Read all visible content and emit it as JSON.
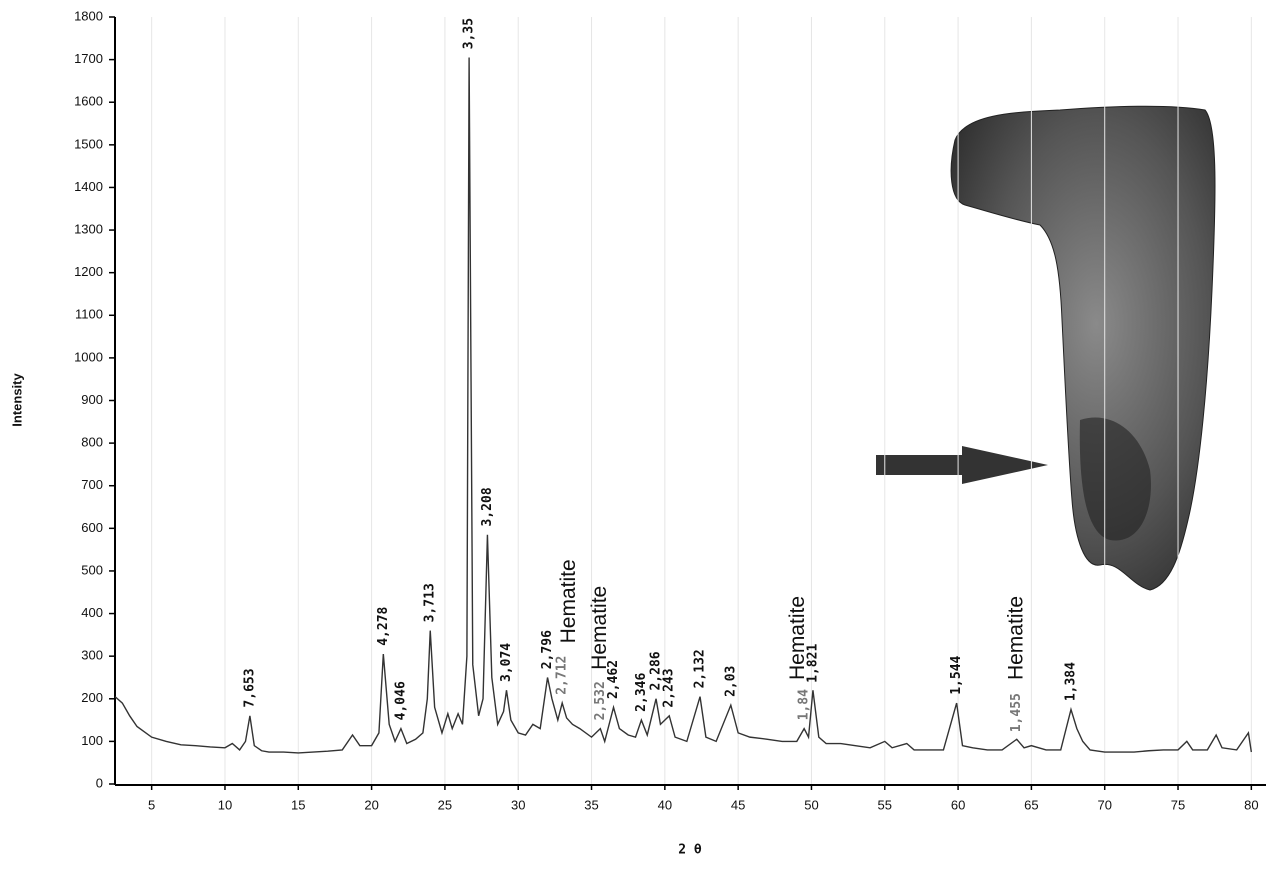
{
  "chart_data": {
    "type": "line",
    "x_label": "2 θ",
    "y_label": "Intensity",
    "xlim": [
      2.5,
      81
    ],
    "ylim": [
      0,
      1800
    ],
    "xticks": [
      5,
      10,
      15,
      20,
      25,
      30,
      35,
      40,
      45,
      50,
      55,
      60,
      65,
      70,
      75,
      80
    ],
    "yticks": [
      0,
      100,
      200,
      300,
      400,
      500,
      600,
      700,
      800,
      900,
      1000,
      1100,
      1200,
      1300,
      1400,
      1500,
      1600,
      1700,
      1800
    ],
    "xgrid": true,
    "color": "#333333",
    "x": [
      2.5,
      3,
      3.5,
      4,
      5,
      6,
      7,
      8,
      9,
      10,
      10.5,
      11,
      11.4,
      11.7,
      12,
      12.5,
      13,
      14,
      15,
      16,
      17,
      18,
      18.7,
      19.2,
      20,
      20.5,
      20.8,
      21.2,
      21.6,
      22,
      22.4,
      23,
      23.5,
      23.8,
      24,
      24.3,
      24.8,
      25.2,
      25.5,
      25.9,
      26.2,
      26.5,
      26.65,
      26.9,
      27.3,
      27.6,
      27.9,
      28.2,
      28.6,
      29,
      29.2,
      29.5,
      30,
      30.5,
      31,
      31.5,
      32,
      32.3,
      32.7,
      33,
      33.3,
      33.7,
      34.2,
      35,
      35.6,
      35.9,
      36.5,
      36.9,
      37.5,
      38,
      38.4,
      38.8,
      39.4,
      39.7,
      40.3,
      40.7,
      41.5,
      42.4,
      42.8,
      43.5,
      44.5,
      45,
      45.8,
      47,
      48,
      49,
      49.5,
      49.8,
      50.1,
      50.5,
      51,
      52,
      53,
      54,
      55,
      55.5,
      56.5,
      57,
      58,
      59,
      59.9,
      60.3,
      61,
      62,
      63,
      64,
      64.5,
      65,
      66,
      67,
      67.7,
      68.1,
      68.5,
      69,
      70,
      71,
      72,
      73,
      74,
      75,
      75.6,
      76,
      77,
      77.6,
      78,
      79,
      79.8,
      80
    ],
    "values": [
      205,
      190,
      160,
      135,
      110,
      100,
      92,
      90,
      87,
      85,
      95,
      80,
      100,
      160,
      90,
      78,
      75,
      75,
      73,
      75,
      77,
      80,
      115,
      90,
      90,
      120,
      305,
      140,
      100,
      130,
      95,
      105,
      120,
      200,
      360,
      180,
      120,
      165,
      130,
      165,
      140,
      300,
      1705,
      280,
      160,
      200,
      585,
      250,
      140,
      170,
      220,
      150,
      120,
      115,
      140,
      130,
      250,
      200,
      150,
      190,
      155,
      140,
      130,
      110,
      130,
      100,
      180,
      130,
      115,
      110,
      150,
      115,
      200,
      140,
      160,
      110,
      100,
      205,
      110,
      100,
      185,
      120,
      110,
      105,
      100,
      100,
      130,
      110,
      220,
      110,
      95,
      95,
      90,
      85,
      100,
      85,
      95,
      80,
      80,
      80,
      190,
      90,
      85,
      80,
      80,
      105,
      85,
      90,
      80,
      80,
      175,
      130,
      100,
      80,
      75,
      75,
      75,
      78,
      80,
      80,
      100,
      80,
      80,
      115,
      85,
      80,
      120,
      75
    ],
    "peak_labels": [
      {
        "text": "7,653",
        "x": 11.7,
        "y": 170,
        "color": "#111111"
      },
      {
        "text": "4,278",
        "x": 20.8,
        "y": 315,
        "color": "#111111"
      },
      {
        "text": "4,046",
        "x": 22.0,
        "y": 140,
        "color": "#111111"
      },
      {
        "text": "3,713",
        "x": 24.0,
        "y": 370,
        "color": "#111111"
      },
      {
        "text": "3,35",
        "x": 26.65,
        "y": 1715,
        "color": "#111111"
      },
      {
        "text": "3,208",
        "x": 27.9,
        "y": 595,
        "color": "#111111"
      },
      {
        "text": "3,074",
        "x": 29.2,
        "y": 230,
        "color": "#111111"
      },
      {
        "text": "2,796",
        "x": 32.0,
        "y": 260,
        "color": "#111111"
      },
      {
        "text": "2,712",
        "x": 33.0,
        "y": 200,
        "color": "#777777"
      },
      {
        "text": "2,532",
        "x": 35.6,
        "y": 140,
        "color": "#777777"
      },
      {
        "text": "2,462",
        "x": 36.5,
        "y": 190,
        "color": "#111111"
      },
      {
        "text": "2,346",
        "x": 38.4,
        "y": 160,
        "color": "#111111"
      },
      {
        "text": "2,286",
        "x": 39.4,
        "y": 210,
        "color": "#111111"
      },
      {
        "text": "2,243",
        "x": 40.3,
        "y": 170,
        "color": "#111111"
      },
      {
        "text": "2,132",
        "x": 42.4,
        "y": 215,
        "color": "#111111"
      },
      {
        "text": "2,03",
        "x": 44.5,
        "y": 195,
        "color": "#111111"
      },
      {
        "text": "1,84",
        "x": 49.5,
        "y": 140,
        "color": "#777777"
      },
      {
        "text": "1,821",
        "x": 50.1,
        "y": 228,
        "color": "#111111"
      },
      {
        "text": "1,544",
        "x": 59.9,
        "y": 200,
        "color": "#111111"
      },
      {
        "text": "1,455",
        "x": 64.0,
        "y": 112,
        "color": "#777777"
      },
      {
        "text": "1,384",
        "x": 67.7,
        "y": 185,
        "color": "#111111"
      }
    ],
    "phase_labels": [
      {
        "text": "Hematite",
        "x": 33.5,
        "y": 330
      },
      {
        "text": "Hematite",
        "x": 35.6,
        "y": 268
      },
      {
        "text": "Hematite",
        "x": 49.1,
        "y": 244
      },
      {
        "text": "Hematite",
        "x": 64.0,
        "y": 244
      }
    ]
  }
}
